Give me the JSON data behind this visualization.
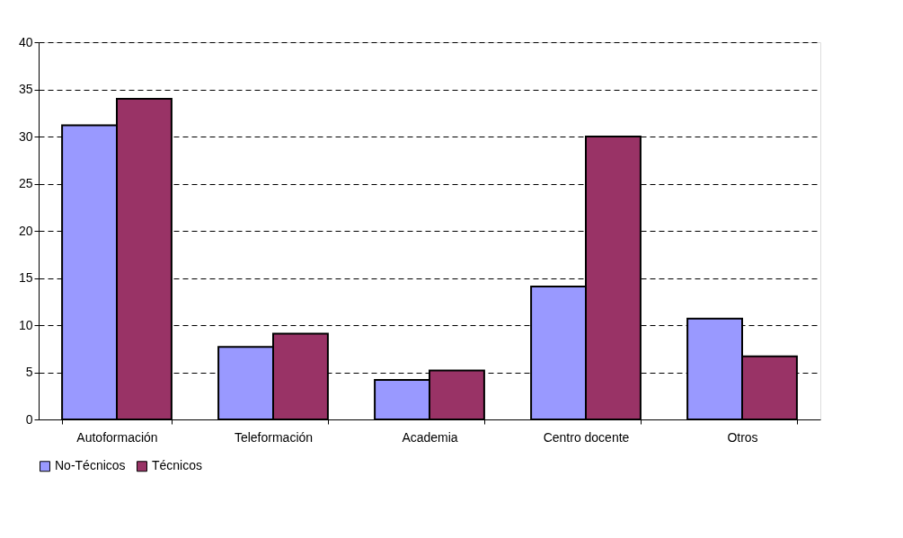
{
  "chart_data": {
    "type": "bar",
    "categories": [
      "Autoformación",
      "Teleformación",
      "Academia",
      "Centro docente",
      "Otros"
    ],
    "series": [
      {
        "name": "No-Técnicos",
        "color": "#9999ff",
        "values": [
          31.2,
          7.7,
          4.2,
          14.1,
          10.7
        ]
      },
      {
        "name": "Técnicos",
        "color": "#993366",
        "values": [
          34.0,
          9.1,
          5.2,
          30.0,
          6.7
        ]
      }
    ],
    "ylim": [
      0,
      40
    ],
    "yticks": [
      0,
      5,
      10,
      15,
      20,
      25,
      30,
      35,
      40
    ],
    "grid": "y",
    "legend": "bottom"
  }
}
